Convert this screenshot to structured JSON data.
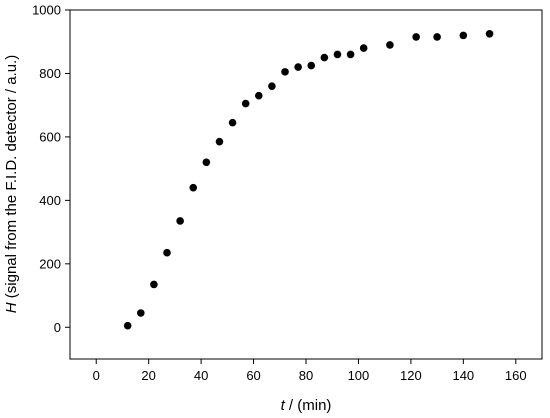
{
  "chart_data": {
    "type": "scatter",
    "xlabel": {
      "symbol": "t",
      "rest": " / (min)"
    },
    "ylabel": {
      "symbol": "H",
      "rest": " (signal from the F.I.D. detector / a.u.)"
    },
    "xlim": [
      -10,
      170
    ],
    "ylim": [
      -100,
      1000
    ],
    "xticks": [
      0,
      20,
      40,
      60,
      80,
      100,
      120,
      140,
      160
    ],
    "yticks": [
      0,
      200,
      400,
      600,
      800,
      1000
    ],
    "grid": false,
    "marker_color": "#000000",
    "series": [
      {
        "x": [
          12,
          17,
          22,
          27,
          32,
          37,
          42,
          47,
          52,
          57,
          62,
          67,
          72,
          77,
          82,
          87,
          92,
          97,
          102,
          112,
          122,
          130,
          140,
          150
        ],
        "y": [
          5,
          45,
          135,
          235,
          335,
          440,
          520,
          585,
          645,
          705,
          730,
          760,
          805,
          820,
          825,
          850,
          860,
          860,
          880,
          890,
          915,
          915,
          920,
          925
        ]
      }
    ]
  }
}
